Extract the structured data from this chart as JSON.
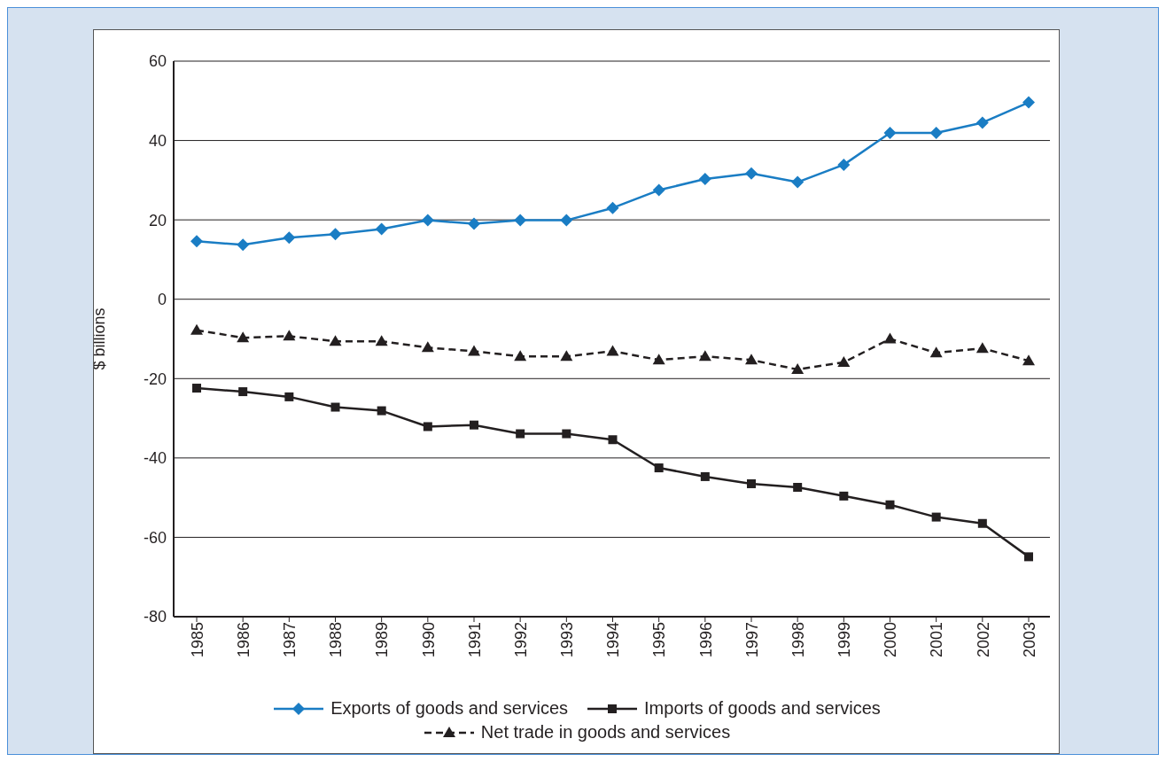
{
  "chart_data": {
    "type": "line",
    "ylabel": "$ billions",
    "categories": [
      "1985",
      "1986",
      "1987",
      "1988",
      "1989",
      "1990",
      "1991",
      "1992",
      "1993",
      "1994",
      "1995",
      "1996",
      "1997",
      "1998",
      "1999",
      "2000",
      "2001",
      "2002",
      "2003"
    ],
    "series": [
      {
        "name": "Exports of goods and services",
        "color": "#1a7dc4",
        "marker": "diamond",
        "line_style": "solid",
        "values": [
          14.6,
          13.7,
          15.5,
          16.4,
          17.7,
          19.9,
          19.0,
          19.9,
          19.9,
          23.0,
          27.5,
          30.3,
          31.7,
          29.5,
          33.9,
          41.9,
          41.9,
          44.5,
          49.6
        ]
      },
      {
        "name": "Imports of goods and services",
        "color": "#231f20",
        "marker": "square",
        "line_style": "solid",
        "values": [
          -22.4,
          -23.3,
          -24.6,
          -27.2,
          -28.1,
          -32.1,
          -31.7,
          -33.9,
          -33.9,
          -35.4,
          -42.5,
          -44.7,
          -46.5,
          -47.4,
          -49.6,
          -51.8,
          -54.9,
          -56.5,
          -64.9
        ]
      },
      {
        "name": "Net trade in goods and services",
        "color": "#231f20",
        "marker": "triangle",
        "line_style": "dashed",
        "values": [
          -7.8,
          -9.7,
          -9.3,
          -10.6,
          -10.6,
          -12.2,
          -13.1,
          -14.4,
          -14.4,
          -13.1,
          -15.3,
          -14.4,
          -15.3,
          -17.7,
          -15.9,
          -10.0,
          -13.5,
          -12.4,
          -15.5
        ]
      }
    ],
    "ylim": [
      -80,
      60
    ],
    "yticks": [
      -80,
      -60,
      -40,
      -20,
      0,
      20,
      40,
      60
    ],
    "grid": "y",
    "legend": "bottom"
  }
}
